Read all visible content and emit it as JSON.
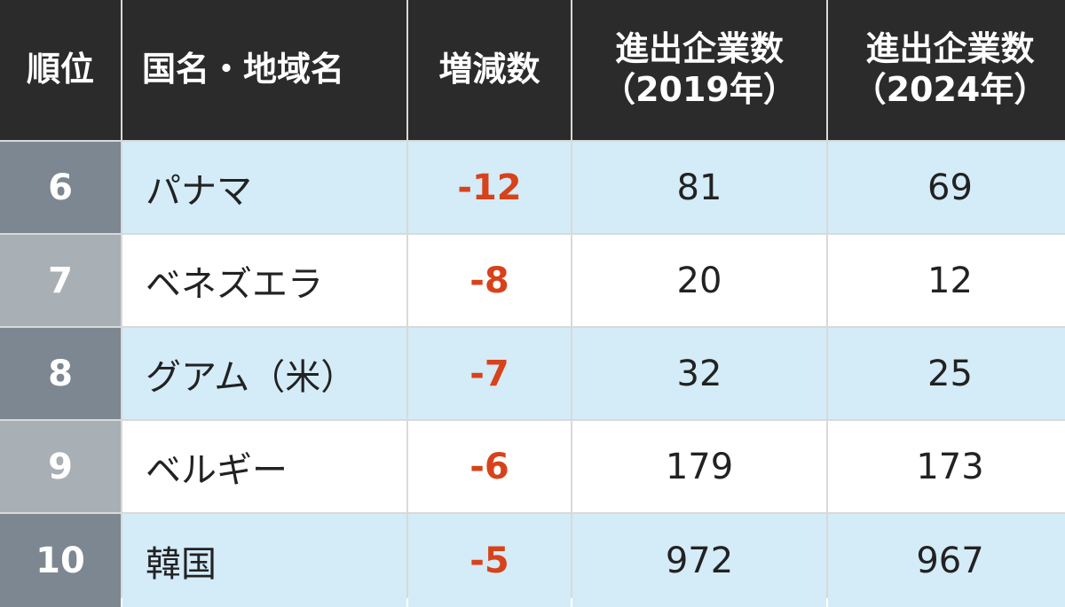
{
  "header": {
    "rank": "順位",
    "country": "国名・地域名",
    "change": "増減数",
    "count_2019_line1": "進出企業数",
    "count_2019_line2": "（2019年）",
    "count_2024_line1": "進出企業数",
    "count_2024_line2": "（2024年）"
  },
  "rows": [
    {
      "rank": "6",
      "name": "パナマ",
      "change": "-12",
      "count_2019": "81",
      "count_2024": "69"
    },
    {
      "rank": "7",
      "name": "ベネズエラ",
      "change": "-8",
      "count_2019": "20",
      "count_2024": "12"
    },
    {
      "rank": "8",
      "name": "グアム（米）",
      "change": "-7",
      "count_2019": "32",
      "count_2024": "25"
    },
    {
      "rank": "9",
      "name": "ベルギー",
      "change": "-6",
      "count_2019": "179",
      "count_2024": "173"
    },
    {
      "rank": "10",
      "name": "韓国",
      "change": "-5",
      "count_2019": "972",
      "count_2024": "967"
    }
  ],
  "colors": {
    "header_bg": "#2b2b2b",
    "row_blue": "#d4ebf8",
    "rank_dark": "#7d8791",
    "rank_light": "#a8afb5",
    "negative": "#d8421a"
  }
}
